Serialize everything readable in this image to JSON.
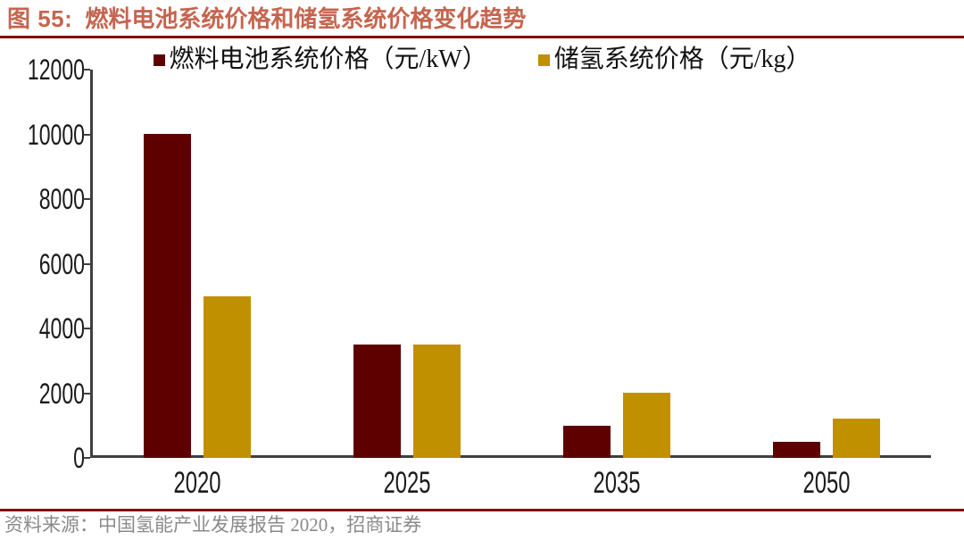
{
  "figure": {
    "label": "图 55:",
    "title": "燃料电池系统价格和储氢系统价格变化趋势"
  },
  "source_line": "资料来源：中国氢能产业发展报告 2020，招商证券",
  "colors": {
    "title_text": "#C5654F",
    "rule": "#7D100A",
    "axis": "#3F3F3F",
    "tick_label": "#1A1A1A",
    "source_text": "#8A8A8A",
    "fuel_cell_series": "#5E0000",
    "h2_storage_series": "#C19000"
  },
  "chart_data": {
    "type": "bar",
    "title": "燃料电池系统价格和储氢系统价格变化趋势",
    "categories": [
      "2020",
      "2025",
      "2035",
      "2050"
    ],
    "series": [
      {
        "name": "燃料电池系统价格（元/kW）",
        "id": "fuel-cell",
        "color": "#5E0000",
        "values": [
          10000,
          3500,
          1000,
          500
        ]
      },
      {
        "name": "储氢系统价格（元/kg）",
        "id": "h2-storage",
        "color": "#C19000",
        "values": [
          5000,
          3500,
          2000,
          1200
        ]
      }
    ],
    "xlabel": "",
    "ylabel": "",
    "ylim": [
      0,
      12000
    ],
    "ytick_step": 2000,
    "yticks": [
      0,
      2000,
      4000,
      6000,
      8000,
      10000,
      12000
    ],
    "grid": false,
    "legend_position": "top"
  }
}
